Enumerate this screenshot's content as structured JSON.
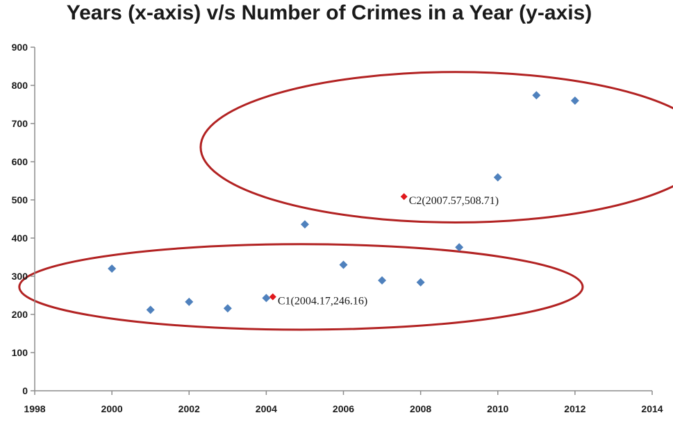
{
  "chart_data": {
    "type": "scatter",
    "title": "Years (x-axis) v/s Number of Crimes in a Year (y-axis)",
    "xlabel": "",
    "ylabel": "",
    "xlim": [
      1998,
      2014
    ],
    "ylim": [
      0,
      900
    ],
    "x_ticks": [
      1998,
      2000,
      2002,
      2004,
      2006,
      2008,
      2010,
      2012,
      2014
    ],
    "y_ticks": [
      0,
      100,
      200,
      300,
      400,
      500,
      600,
      700,
      800,
      900
    ],
    "grid": false,
    "legend": "none",
    "colors": {
      "points": "#4f81bd",
      "centroids": "#e0181c",
      "clusters": "#b22222",
      "axis": "#8c8c8c"
    },
    "points": [
      {
        "x": 2000,
        "y": 320
      },
      {
        "x": 2001,
        "y": 212
      },
      {
        "x": 2002,
        "y": 233
      },
      {
        "x": 2003,
        "y": 216
      },
      {
        "x": 2004,
        "y": 243
      },
      {
        "x": 2005,
        "y": 436
      },
      {
        "x": 2006,
        "y": 330
      },
      {
        "x": 2007,
        "y": 289
      },
      {
        "x": 2008,
        "y": 284
      },
      {
        "x": 2009,
        "y": 376
      },
      {
        "x": 2010,
        "y": 559
      },
      {
        "x": 2011,
        "y": 774
      },
      {
        "x": 2012,
        "y": 760
      }
    ],
    "centroids": [
      {
        "x": 2004.17,
        "y": 246.16,
        "label": "C1(2004.17,246.16)"
      },
      {
        "x": 2007.57,
        "y": 508.71,
        "label": "C2(2007.57,508.71)"
      }
    ],
    "clusters": [
      {
        "cx": 2004.9,
        "cy": 272,
        "rx": 7.3,
        "ry": 112
      },
      {
        "cx": 2008.9,
        "cy": 638,
        "rx": 6.6,
        "ry": 197
      }
    ]
  }
}
